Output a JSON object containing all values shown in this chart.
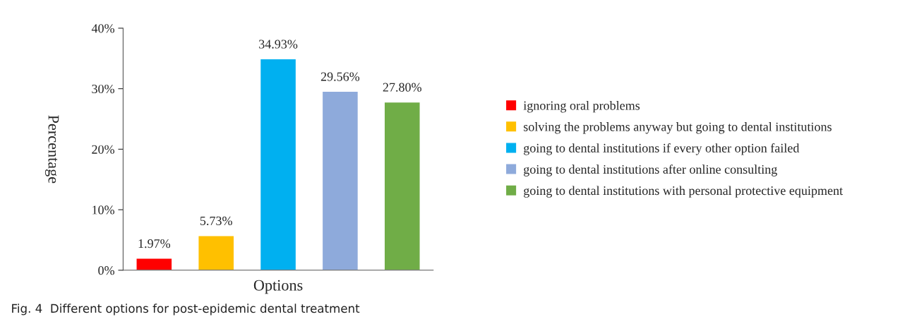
{
  "chart_data": {
    "type": "bar",
    "xlabel": "Options",
    "ylabel": "Percentage",
    "categories": [
      null,
      null,
      null,
      null,
      null
    ],
    "series": [
      {
        "name": "ignoring oral problems",
        "color": "#ff0000",
        "values": [
          1.97,
          null,
          null,
          null,
          null
        ],
        "value_labels": [
          "1.97%",
          null,
          null,
          null,
          null
        ]
      },
      {
        "name": "solving the problems anyway but going to dental institutions",
        "color": "#ffc000",
        "values": [
          null,
          5.73,
          null,
          null,
          null
        ],
        "value_labels": [
          null,
          "5.73%",
          null,
          null,
          null
        ]
      },
      {
        "name": "going to dental institutions if every other option failed",
        "color": "#00b0f0",
        "values": [
          null,
          null,
          34.93,
          null,
          null
        ],
        "value_labels": [
          null,
          null,
          "34.93%",
          null,
          null
        ]
      },
      {
        "name": "going to dental institutions after online consulting",
        "color": "#8eaadb",
        "values": [
          null,
          null,
          null,
          29.56,
          null
        ],
        "value_labels": [
          null,
          null,
          null,
          "29.56%",
          null
        ]
      },
      {
        "name": "going to dental institutions with personal protective equipment",
        "color": "#70ad47",
        "values": [
          null,
          null,
          null,
          null,
          27.8
        ],
        "value_labels": [
          null,
          null,
          null,
          null,
          "27.80%"
        ]
      }
    ],
    "ylim": [
      0,
      40
    ],
    "yticks": [
      {
        "value": 0,
        "label": "0%"
      },
      {
        "value": 10,
        "label": "10%"
      },
      {
        "value": 20,
        "label": "20%"
      },
      {
        "value": 30,
        "label": "30%"
      },
      {
        "value": 40,
        "label": "40%"
      }
    ],
    "grid": false,
    "legend": "right",
    "annotations": [
      "Fig. 4  Different options for post-epidemic dental treatment"
    ]
  }
}
